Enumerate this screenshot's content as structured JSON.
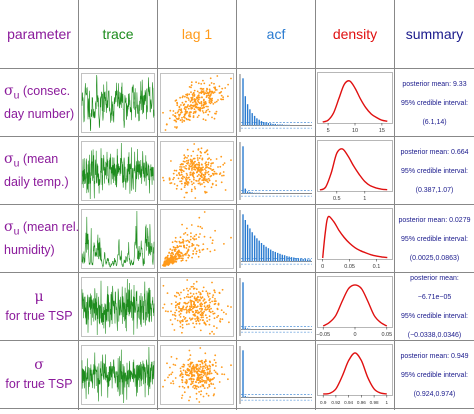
{
  "headers": {
    "parameter": "parameter",
    "trace": "trace",
    "lag": "lag 1",
    "acf": "acf",
    "density": "density",
    "summary": "summary"
  },
  "colors": {
    "parameter": "#8b1a9b",
    "trace": "#1e8c1e",
    "lag": "#ff9a1a",
    "acf": "#2a7bd0",
    "density": "#e01010",
    "summary": "#1a1a8c"
  },
  "rows": [
    {
      "symbol": "σ",
      "subscript": "u",
      "label_line1": " (consec.",
      "label_line2": "day number)",
      "summary": {
        "mean": "posterior mean: 9.33",
        "ci_label": "95% credible interval:",
        "ci": "(6.1,14)"
      }
    },
    {
      "symbol": "σ",
      "subscript": "u",
      "label_line1": " (mean",
      "label_line2": "daily temp.)",
      "summary": {
        "mean": "posterior mean: 0.664",
        "ci_label": "95% credible interval:",
        "ci": "(0.387,1.07)"
      }
    },
    {
      "symbol": "σ",
      "subscript": "u",
      "label_line1": " (mean rel.",
      "label_line2": "humidity)",
      "summary": {
        "mean": "posterior mean: 0.0279",
        "ci_label": "95% credible interval:",
        "ci": "(0.0025,0.0863)"
      }
    },
    {
      "symbol": "μ",
      "subscript": "",
      "label_line1": "",
      "label_line2": "for true TSP",
      "summary": {
        "mean": "posterior mean: −6.71e−05",
        "ci_label": "95% credible interval:",
        "ci": "(−0.0338,0.0346)"
      }
    },
    {
      "symbol": "σ",
      "subscript": "",
      "label_line1": "",
      "label_line2": "for true TSP",
      "summary": {
        "mean": "posterior mean: 0.949",
        "ci_label": "95% credible interval:",
        "ci": "(0.924,0.974)"
      }
    }
  ],
  "chart_data": [
    {
      "type": "line",
      "panel": "density",
      "row": 1,
      "x": [
        4,
        5,
        6,
        7,
        8,
        9,
        10,
        11,
        12,
        13,
        14,
        15,
        16
      ],
      "y": [
        0.0,
        0.01,
        0.05,
        0.13,
        0.21,
        0.23,
        0.19,
        0.13,
        0.08,
        0.045,
        0.025,
        0.01,
        0.004
      ],
      "xlim": [
        3.5,
        16.5
      ],
      "ticks": [
        "5",
        "10",
        "15"
      ],
      "tick_values": [
        5,
        10,
        15
      ]
    },
    {
      "type": "line",
      "panel": "density",
      "row": 2,
      "x": [
        0.2,
        0.3,
        0.4,
        0.5,
        0.6,
        0.7,
        0.8,
        0.9,
        1.0,
        1.1,
        1.2,
        1.3,
        1.4
      ],
      "y": [
        0.0,
        0.2,
        1.2,
        2.6,
        2.9,
        2.4,
        1.7,
        1.1,
        0.6,
        0.3,
        0.15,
        0.06,
        0.02
      ],
      "xlim": [
        0.2,
        1.45
      ],
      "ticks": [
        "0.5",
        "1"
      ],
      "tick_values": [
        0.5,
        1.0
      ]
    },
    {
      "type": "line",
      "panel": "density",
      "row": 3,
      "x": [
        0.0,
        0.005,
        0.01,
        0.02,
        0.03,
        0.04,
        0.05,
        0.06,
        0.07,
        0.08,
        0.09,
        0.1,
        0.11,
        0.12
      ],
      "y": [
        0.0,
        18,
        28,
        25,
        19,
        14,
        10,
        7,
        5,
        3.5,
        2.2,
        1.3,
        0.7,
        0.3
      ],
      "xlim": [
        -0.005,
        0.125
      ],
      "ticks": [
        "0",
        "0.05",
        "0.1"
      ],
      "tick_values": [
        0,
        0.05,
        0.1
      ]
    },
    {
      "type": "line",
      "panel": "density",
      "row": 4,
      "x": [
        -0.05,
        -0.04,
        -0.03,
        -0.02,
        -0.01,
        0.0,
        0.01,
        0.02,
        0.03,
        0.04,
        0.05
      ],
      "y": [
        0.0,
        2,
        6,
        14,
        21,
        23,
        21,
        14,
        6,
        2,
        0.0
      ],
      "xlim": [
        -0.055,
        0.055
      ],
      "ticks": [
        "−0.05",
        "0",
        "0.05"
      ],
      "tick_values": [
        -0.05,
        0,
        0.05
      ]
    },
    {
      "type": "line",
      "panel": "density",
      "row": 5,
      "x": [
        0.9,
        0.91,
        0.92,
        0.93,
        0.94,
        0.95,
        0.96,
        0.97,
        0.98,
        0.99,
        1.0
      ],
      "y": [
        0.0,
        0.5,
        4,
        14,
        26,
        32,
        26,
        13,
        4,
        0.8,
        0.0
      ],
      "xlim": [
        0.895,
        1.005
      ],
      "ticks": [
        "0.9",
        "0.92",
        "0.94",
        "0.96",
        "0.98",
        "1"
      ],
      "tick_values": [
        0.9,
        0.92,
        0.94,
        0.96,
        0.98,
        1.0
      ]
    },
    {
      "type": "bar",
      "panel": "acf",
      "row": 1,
      "values": [
        1.0,
        0.62,
        0.45,
        0.34,
        0.26,
        0.2,
        0.15,
        0.12,
        0.09,
        0.07,
        0.06,
        0.05,
        0.04,
        0.03,
        0.03,
        0.02,
        0.02,
        0.02,
        0.01,
        0.01,
        0.01,
        0.0,
        0.0,
        0.0,
        0.0,
        0.0,
        0.0,
        0.0,
        0.0,
        0.0
      ],
      "ylim": [
        -0.1,
        1.05
      ]
    },
    {
      "type": "bar",
      "panel": "acf",
      "row": 2,
      "values": [
        1.0,
        0.1,
        0.04,
        0.03,
        0.02,
        0.01,
        0.01,
        0.01,
        0.0,
        0.0,
        0.0,
        0.0,
        0.0,
        0.0,
        0.0,
        0.0,
        0.0,
        0.0,
        0.0,
        0.0,
        0.0,
        0.0,
        0.0,
        0.0,
        0.0,
        0.0,
        0.0,
        0.0,
        0.0,
        0.0
      ],
      "ylim": [
        -0.1,
        1.05
      ]
    },
    {
      "type": "bar",
      "panel": "acf",
      "row": 3,
      "values": [
        1.0,
        0.88,
        0.78,
        0.7,
        0.62,
        0.55,
        0.49,
        0.44,
        0.39,
        0.35,
        0.31,
        0.28,
        0.25,
        0.22,
        0.2,
        0.18,
        0.16,
        0.14,
        0.13,
        0.11,
        0.1,
        0.09,
        0.08,
        0.07,
        0.06,
        0.06,
        0.05,
        0.05,
        0.04,
        0.04
      ],
      "ylim": [
        -0.1,
        1.05
      ]
    },
    {
      "type": "bar",
      "panel": "acf",
      "row": 4,
      "values": [
        1.0,
        0.04,
        0.02,
        0.01,
        0.0,
        0.0,
        0.0,
        0.0,
        0.0,
        0.0,
        0.0,
        0.0,
        0.0,
        0.0,
        0.0,
        0.0,
        0.0,
        0.0,
        0.0,
        0.0,
        0.0,
        0.0,
        0.0,
        0.0,
        0.0,
        0.0,
        0.0,
        0.0,
        0.0,
        0.0
      ],
      "ylim": [
        -0.1,
        1.05
      ]
    },
    {
      "type": "bar",
      "panel": "acf",
      "row": 5,
      "values": [
        1.0,
        0.03,
        0.01,
        0.0,
        0.0,
        0.0,
        0.0,
        0.0,
        0.0,
        0.0,
        0.0,
        0.0,
        0.0,
        0.0,
        0.0,
        0.0,
        0.0,
        0.0,
        0.0,
        0.0,
        0.0,
        0.0,
        0.0,
        0.0,
        0.0,
        0.0,
        0.0,
        0.0,
        0.0,
        0.0
      ],
      "ylim": [
        -0.1,
        1.05
      ]
    }
  ]
}
